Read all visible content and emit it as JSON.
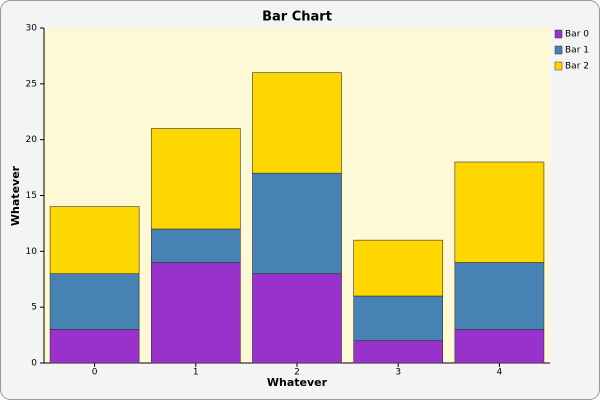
{
  "chart_data": {
    "type": "bar",
    "stacked": true,
    "title": "Bar Chart",
    "x_label": "Whatever",
    "y_label": "Whatever",
    "categories": [
      "0",
      "1",
      "2",
      "3",
      "4"
    ],
    "series": [
      {
        "name": "Bar 0",
        "color": "#9932cc",
        "values": [
          3,
          9,
          8,
          2,
          3
        ]
      },
      {
        "name": "Bar 1",
        "color": "#4682b4",
        "values": [
          5,
          3,
          9,
          4,
          6
        ]
      },
      {
        "name": "Bar 2",
        "color": "#ffd700",
        "values": [
          6,
          9,
          9,
          5,
          9
        ]
      }
    ],
    "ylim": [
      0,
      30
    ],
    "yticks": [
      0,
      5,
      10,
      15,
      20,
      25,
      30
    ],
    "legend": "top-right"
  }
}
